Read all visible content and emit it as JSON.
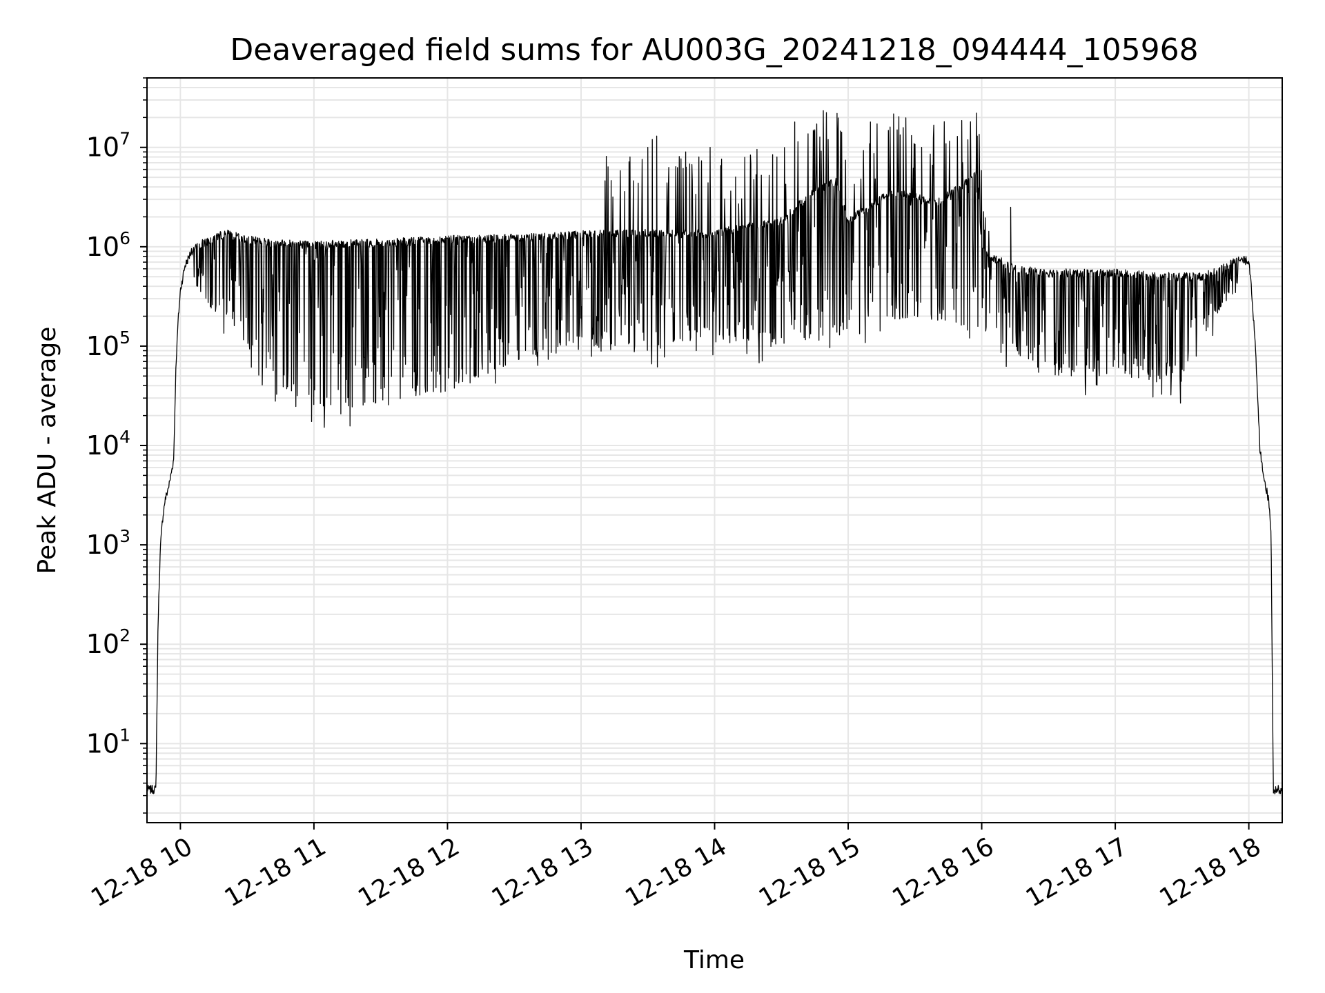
{
  "chart_data": {
    "type": "line",
    "title": "Deaveraged field sums for AU003G_20241218_094444_105968",
    "xlabel": "Time",
    "ylabel": "Peak ADU - average",
    "yscale": "log",
    "ylim": [
      1.6,
      50000000
    ],
    "xlim": [
      "12-18 09:45",
      "12-18 18:15"
    ],
    "grid": "on",
    "y_tick_labels": [
      {
        "base": "10",
        "exp": "1",
        "value": 10
      },
      {
        "base": "10",
        "exp": "2",
        "value": 100
      },
      {
        "base": "10",
        "exp": "3",
        "value": 1000
      },
      {
        "base": "10",
        "exp": "4",
        "value": 10000
      },
      {
        "base": "10",
        "exp": "5",
        "value": 100000
      },
      {
        "base": "10",
        "exp": "6",
        "value": 1000000
      },
      {
        "base": "10",
        "exp": "7",
        "value": 10000000
      }
    ],
    "x_tick_labels": [
      {
        "label": "12-18 10",
        "time": "12-18 10:00"
      },
      {
        "label": "12-18 11",
        "time": "12-18 11:00"
      },
      {
        "label": "12-18 12",
        "time": "12-18 12:00"
      },
      {
        "label": "12-18 13",
        "time": "12-18 13:00"
      },
      {
        "label": "12-18 14",
        "time": "12-18 14:00"
      },
      {
        "label": "12-18 15",
        "time": "12-18 15:00"
      },
      {
        "label": "12-18 16",
        "time": "12-18 16:00"
      },
      {
        "label": "12-18 17",
        "time": "12-18 17:00"
      },
      {
        "label": "12-18 18",
        "time": "12-18 18:00"
      }
    ],
    "series": [
      {
        "color": "#000000",
        "envelope_time": [
          "12-18 09:45",
          "12-18 09:49",
          "12-18 09:50",
          "12-18 09:51",
          "12-18 09:52",
          "12-18 09:53",
          "12-18 09:55",
          "12-18 09:57",
          "12-18 09:58",
          "12-18 09:59",
          "12-18 10:00",
          "12-18 10:02",
          "12-18 10:05",
          "12-18 10:10",
          "12-18 10:20",
          "12-18 10:30",
          "12-18 10:40",
          "12-18 11:00",
          "12-18 11:30",
          "12-18 12:00",
          "12-18 12:30",
          "12-18 13:00",
          "12-18 13:15",
          "12-18 13:30",
          "12-18 14:00",
          "12-18 14:30",
          "12-18 14:45",
          "12-18 14:55",
          "12-18 15:00",
          "12-18 15:20",
          "12-18 15:40",
          "12-18 15:58",
          "12-18 16:00",
          "12-18 16:15",
          "12-18 16:30",
          "12-18 17:00",
          "12-18 17:20",
          "12-18 17:40",
          "12-18 17:55",
          "12-18 18:00",
          "12-18 18:01",
          "12-18 18:03",
          "12-18 18:05",
          "12-18 18:07",
          "12-18 18:09",
          "12-18 18:10",
          "12-18 18:11",
          "12-18 18:15"
        ],
        "envelope_value": [
          3.8,
          3.8,
          200,
          1000,
          2000,
          3000,
          4500,
          8000,
          70000,
          200000,
          400000,
          700000,
          1000000,
          1200000,
          1500000,
          1300000,
          1200000,
          1150000,
          1200000,
          1300000,
          1350000,
          1450000,
          1500000,
          1500000,
          1500000,
          2000000,
          4000000,
          5000000,
          2000000,
          4000000,
          3000000,
          6000000,
          1000000,
          650000,
          600000,
          600000,
          550000,
          550000,
          800000,
          800000,
          500000,
          100000,
          10000,
          5000,
          3000,
          1500,
          3.8,
          3.8
        ],
        "dip_floor_time": [
          "12-18 10:00",
          "12-18 10:30",
          "12-18 10:45",
          "12-18 11:00",
          "12-18 11:20",
          "12-18 11:40",
          "12-18 12:00",
          "12-18 12:30",
          "12-18 13:00",
          "12-18 13:30",
          "12-18 14:00",
          "12-18 14:30",
          "12-18 15:00",
          "12-18 15:30",
          "12-18 16:00",
          "12-18 16:30",
          "12-18 17:00",
          "12-18 17:30",
          "12-18 17:45",
          "12-18 18:00"
        ],
        "dip_floor_value": [
          500000,
          100000,
          40000,
          25000,
          25000,
          30000,
          35000,
          70000,
          100000,
          100000,
          120000,
          100000,
          150000,
          200000,
          150000,
          50000,
          50000,
          40000,
          200000,
          600000
        ],
        "spike_peaks": [
          {
            "time": "12-18 13:22",
            "value": 8000000
          },
          {
            "time": "12-18 13:30",
            "value": 10000000
          },
          {
            "time": "12-18 13:32",
            "value": 12000000
          },
          {
            "time": "12-18 13:34",
            "value": 13000000
          },
          {
            "time": "12-18 13:47",
            "value": 9000000
          },
          {
            "time": "12-18 13:58",
            "value": 10000000
          },
          {
            "time": "12-18 14:28",
            "value": 8000000
          },
          {
            "time": "12-18 14:36",
            "value": 18000000
          },
          {
            "time": "12-18 14:45",
            "value": 15000000
          },
          {
            "time": "12-18 14:51",
            "value": 12000000
          },
          {
            "time": "12-18 14:55",
            "value": 22000000
          },
          {
            "time": "12-18 15:10",
            "value": 18000000
          },
          {
            "time": "12-18 15:22",
            "value": 15000000
          },
          {
            "time": "12-18 15:33",
            "value": 10000000
          },
          {
            "time": "12-18 15:58",
            "value": 13000000
          },
          {
            "time": "12-18 16:13",
            "value": 2500000
          }
        ]
      }
    ]
  }
}
